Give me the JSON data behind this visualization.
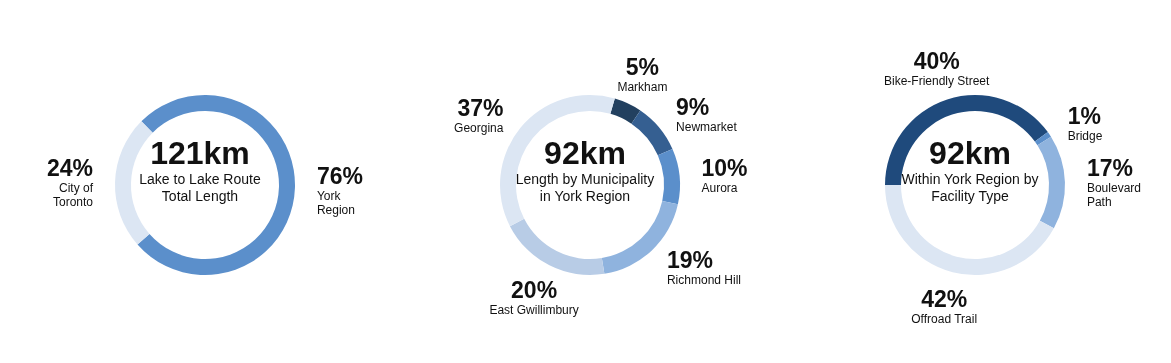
{
  "chart_data": [
    {
      "type": "donut",
      "title": "121km",
      "subtitle": "Lake to Lake Route Total Length",
      "categories": [
        "York Region",
        "City of Toronto"
      ],
      "values": [
        76,
        24
      ],
      "value_labels": [
        "76%",
        "24%"
      ],
      "colors": [
        "#5b8fcb",
        "#dce6f3"
      ]
    },
    {
      "type": "donut",
      "title": "92km",
      "subtitle": "Length by Municipality in York Region",
      "categories": [
        "Markham",
        "Newmarket",
        "Aurora",
        "Richmond Hill",
        "East Gwillimbury",
        "Georgina"
      ],
      "values": [
        5,
        9,
        10,
        19,
        20,
        37
      ],
      "value_labels": [
        "5%",
        "9%",
        "10%",
        "19%",
        "20%",
        "37%"
      ],
      "colors": [
        "#22405f",
        "#355f91",
        "#5b8fcb",
        "#8fb3de",
        "#b8cce6",
        "#dce6f3"
      ]
    },
    {
      "type": "donut",
      "title": "92km",
      "subtitle": "Within York Region by Facility Type",
      "categories": [
        "Bike-Friendly Street",
        "Bridge",
        "Boulevard Path",
        "Offroad Trail"
      ],
      "values": [
        40,
        1,
        17,
        42
      ],
      "value_labels": [
        "40%",
        "1%",
        "17%",
        "42%"
      ],
      "colors": [
        "#1f4a7c",
        "#5b8fcb",
        "#8fb3de",
        "#dce6f3"
      ]
    }
  ]
}
